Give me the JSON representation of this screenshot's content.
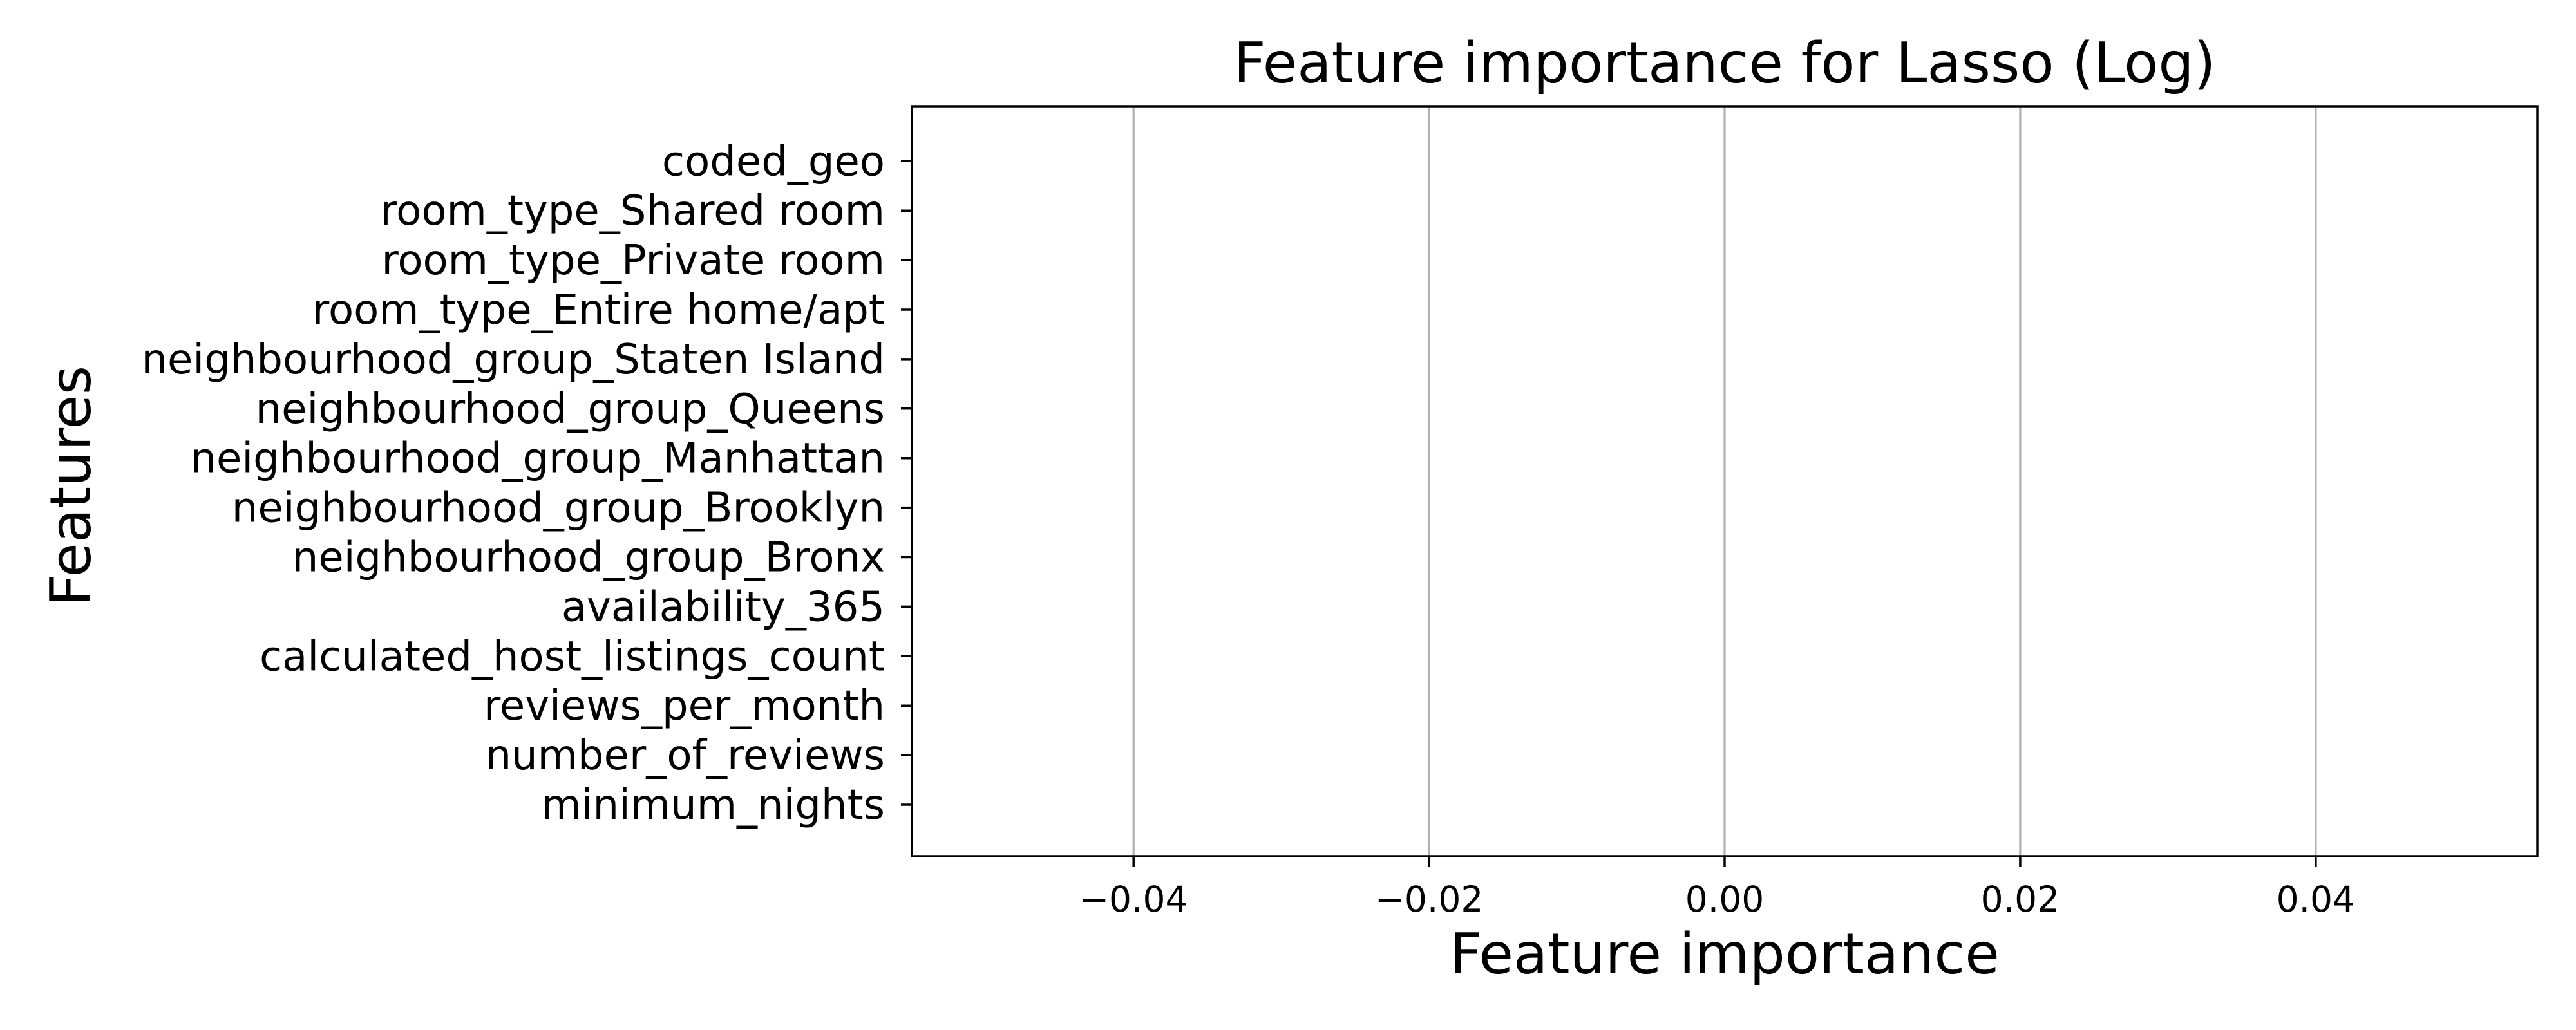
{
  "chart_data": {
    "type": "bar",
    "orientation": "horizontal",
    "title": "Feature importance for Lasso (Log)",
    "xlabel": "Feature importance",
    "ylabel": "Features",
    "categories": [
      "minimum_nights",
      "number_of_reviews",
      "reviews_per_month",
      "calculated_host_listings_count",
      "availability_365",
      "neighbourhood_group_Bronx",
      "neighbourhood_group_Brooklyn",
      "neighbourhood_group_Manhattan",
      "neighbourhood_group_Queens",
      "neighbourhood_group_Staten Island",
      "room_type_Entire home/apt",
      "room_type_Private room",
      "room_type_Shared room",
      "coded_geo"
    ],
    "values": [
      0,
      0,
      0,
      0,
      0,
      0,
      0,
      0,
      0,
      0,
      0,
      0,
      0,
      0
    ],
    "xlim": [
      -0.055,
      0.055
    ],
    "xticks": [
      -0.04,
      -0.02,
      0.0,
      0.02,
      0.04
    ],
    "xtick_labels": [
      "−0.04",
      "−0.02",
      "0.00",
      "0.02",
      "0.04"
    ],
    "grid": {
      "x": true,
      "y": false
    },
    "bar_color": "#1f77b4"
  }
}
